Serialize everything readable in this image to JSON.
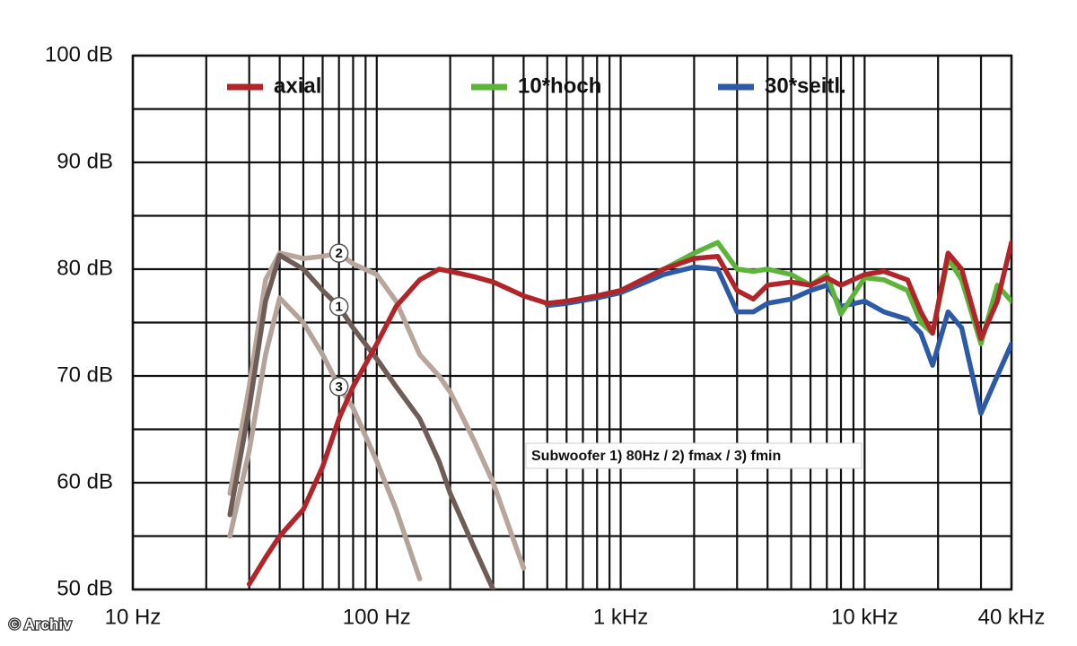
{
  "chart_data": {
    "type": "line",
    "x_log": true,
    "x": [
      20,
      25,
      30,
      35,
      40,
      50,
      60,
      70,
      80,
      100,
      120,
      150,
      180,
      200,
      250,
      300,
      400,
      500,
      600,
      800,
      1000,
      1500,
      2000,
      2500,
      3000,
      3500,
      4000,
      5000,
      6000,
      7000,
      8000,
      10000,
      12000,
      15000,
      17000,
      19000,
      22000,
      25000,
      30000,
      35000,
      40000
    ],
    "xlim": [
      10,
      40000
    ],
    "xticks": [
      {
        "value": 10,
        "label": "10 Hz"
      },
      {
        "value": 100,
        "label": "100 Hz"
      },
      {
        "value": 1000,
        "label": "1 kHz"
      },
      {
        "value": 10000,
        "label": "10 kHz"
      },
      {
        "value": 40000,
        "label": "40 kHz"
      }
    ],
    "x_minor_ticks": [
      20,
      30,
      40,
      50,
      60,
      70,
      80,
      90,
      200,
      300,
      400,
      500,
      600,
      700,
      800,
      900,
      2000,
      3000,
      4000,
      5000,
      6000,
      7000,
      8000,
      9000,
      20000,
      30000
    ],
    "ylim": [
      50,
      100
    ],
    "yticks": [
      {
        "value": 50,
        "label": "50 dB"
      },
      {
        "value": 60,
        "label": "60 dB"
      },
      {
        "value": 70,
        "label": "70 dB"
      },
      {
        "value": 80,
        "label": "80 dB"
      },
      {
        "value": 90,
        "label": "90 dB"
      },
      {
        "value": 100,
        "label": "100 dB"
      }
    ],
    "y_minor_ticks": [
      55,
      65,
      75,
      85,
      95
    ],
    "grid": true,
    "legend": "top",
    "series": [
      {
        "name": "axial",
        "label": "legend",
        "color": "#b0242a",
        "values": [
          null,
          null,
          50.5,
          53,
          55,
          57.5,
          61.5,
          66,
          69,
          73,
          76.5,
          79,
          80,
          79.8,
          79.3,
          78.8,
          77.5,
          76.8,
          77,
          77.5,
          78,
          80,
          81,
          81.2,
          78,
          77.2,
          78.5,
          78.8,
          78.5,
          79.2,
          78.5,
          79.5,
          79.8,
          79,
          76,
          74,
          81.5,
          80,
          73.5,
          77,
          82.5
        ]
      },
      {
        "name": "10*hoch",
        "label": "legend",
        "color": "#5db43a",
        "values": [
          null,
          null,
          null,
          null,
          null,
          null,
          null,
          null,
          null,
          null,
          null,
          null,
          null,
          null,
          null,
          null,
          null,
          76.8,
          77,
          77.5,
          78,
          80,
          81.5,
          82.5,
          80,
          79.8,
          80,
          79.5,
          78.5,
          79.5,
          75.8,
          79.2,
          79,
          78,
          75,
          74,
          81,
          79,
          73,
          78.5,
          77
        ]
      },
      {
        "name": "30*seitl.",
        "label": "legend",
        "color": "#2c5aa6",
        "values": [
          null,
          null,
          null,
          null,
          null,
          null,
          null,
          null,
          null,
          null,
          null,
          null,
          null,
          null,
          null,
          null,
          null,
          76.6,
          76.8,
          77.3,
          77.8,
          79.5,
          80.2,
          80,
          76,
          76,
          76.8,
          77.2,
          78,
          78.5,
          76.5,
          77,
          76,
          75.3,
          74,
          71,
          76,
          74.5,
          66.5,
          70,
          73
        ]
      },
      {
        "name": "1",
        "label": "curve",
        "color": "#6e5d56",
        "values": [
          null,
          57,
          67,
          77,
          81.3,
          80,
          78,
          76.5,
          74.5,
          71.6,
          69,
          66,
          62,
          59,
          54,
          50,
          null,
          null,
          null,
          null,
          null,
          null,
          null,
          null,
          null,
          null,
          null,
          null,
          null,
          null,
          null,
          null,
          null,
          null,
          null,
          null,
          null,
          null,
          null,
          null,
          null
        ]
      },
      {
        "name": "2",
        "label": "curve",
        "color": "#b8a59c",
        "values": [
          null,
          59,
          69,
          79,
          81.5,
          81,
          81.2,
          81.5,
          80.5,
          79.5,
          77,
          72,
          70,
          68.5,
          64,
          60,
          52,
          null,
          null,
          null,
          null,
          null,
          null,
          null,
          null,
          null,
          null,
          null,
          null,
          null,
          null,
          null,
          null,
          null,
          null,
          null,
          null,
          null,
          null,
          null,
          null
        ]
      },
      {
        "name": "3",
        "label": "curve",
        "color": "#b3a39b",
        "values": [
          null,
          55,
          63,
          72,
          77.3,
          75,
          72,
          69,
          67,
          62,
          57.5,
          51,
          null,
          null,
          null,
          null,
          null,
          null,
          null,
          null,
          null,
          null,
          null,
          null,
          null,
          null,
          null,
          null,
          null,
          null,
          null,
          null,
          null,
          null,
          null,
          null,
          null,
          null,
          null,
          null,
          null
        ]
      }
    ],
    "annotation": "Subwoofer 1) 80Hz / 2) fmax / 3) fmin",
    "credit": "© Archiv"
  }
}
